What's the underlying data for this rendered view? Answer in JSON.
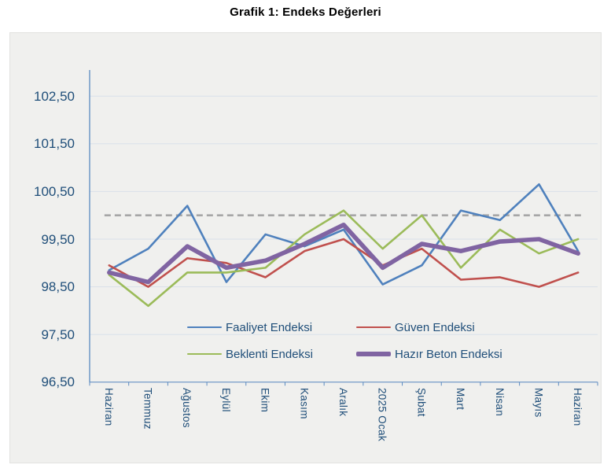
{
  "page": {
    "title": "Grafik 1: Endeks Değerleri"
  },
  "chart_data": {
    "type": "line",
    "title": "Grafik 1: Endeks Değerleri",
    "categories": [
      "Haziran",
      "Temmuz",
      "Ağustos",
      "Eylül",
      "Ekim",
      "Kasım",
      "Aralık",
      "2025 Ocak",
      "Şubat",
      "Mart",
      "Nisan",
      "Mayıs",
      "Haziran"
    ],
    "series": [
      {
        "name": "Faaliyet Endeksi",
        "color": "#4F81BD",
        "line_width": 2.6,
        "values": [
          98.85,
          99.3,
          100.2,
          98.6,
          99.6,
          99.35,
          99.7,
          98.55,
          98.95,
          100.1,
          99.9,
          100.65,
          99.25
        ]
      },
      {
        "name": "Güven Endeksi",
        "color": "#C0504D",
        "line_width": 2.6,
        "values": [
          98.95,
          98.5,
          99.1,
          99.0,
          98.7,
          99.25,
          99.5,
          98.95,
          99.3,
          98.65,
          98.7,
          98.5,
          98.8
        ]
      },
      {
        "name": "Beklenti Endeksi",
        "color": "#9BBB59",
        "line_width": 2.6,
        "values": [
          98.75,
          98.1,
          98.8,
          98.8,
          98.9,
          99.6,
          100.1,
          99.3,
          100.0,
          98.9,
          99.7,
          99.2,
          99.5
        ]
      },
      {
        "name": "Hazır Beton Endeksi",
        "color": "#8064A2",
        "line_width": 5.6,
        "values": [
          98.8,
          98.6,
          99.35,
          98.9,
          99.05,
          99.4,
          99.8,
          98.9,
          99.4,
          99.25,
          99.45,
          99.5,
          99.2
        ]
      }
    ],
    "reference_line": {
      "value": 100.0,
      "style": "dashed",
      "color": "#A6A6A6"
    },
    "y_axis": {
      "min": 96.5,
      "max": 102.5,
      "tick_step": 1.0,
      "tick_labels_top_to_bottom": [
        "102,50",
        "101,50",
        "100,50",
        "99,50",
        "98,50",
        "97,50",
        "96,50"
      ]
    },
    "x_axis": {
      "label_rotation_deg": -90
    },
    "grid": true,
    "legend_position": "inside-bottom",
    "decimal_format": "comma"
  },
  "colors": {
    "axis_text": "#1F4E79",
    "legend_text": "#1F4E79",
    "grid_line": "#d9e1ea",
    "axis_line": "#5b8ac0",
    "plot_background": "#f0f0ee",
    "page_background": "#ffffff",
    "title_text": "#000000"
  }
}
